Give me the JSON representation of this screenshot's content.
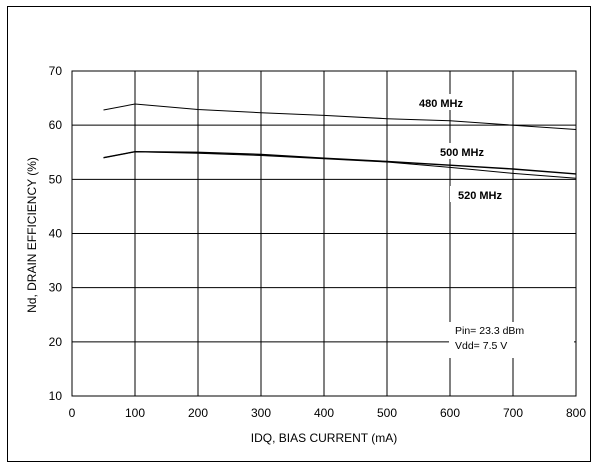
{
  "chart_data": {
    "type": "line",
    "xlabel": "IDQ, BIAS CURRENT (mA)",
    "ylabel": "Nd, DRAIN EFFICIENCY (%)",
    "xlim": [
      0,
      800
    ],
    "ylim": [
      10,
      70
    ],
    "x_ticks": [
      0,
      100,
      200,
      300,
      400,
      500,
      600,
      700,
      800
    ],
    "y_ticks": [
      10,
      20,
      30,
      40,
      50,
      60,
      70
    ],
    "grid": true,
    "series": [
      {
        "name": "480 MHz",
        "x": [
          50,
          100,
          200,
          300,
          400,
          500,
          600,
          700,
          800
        ],
        "y": [
          62.8,
          63.9,
          62.9,
          62.3,
          61.8,
          61.2,
          60.8,
          60.0,
          59.2
        ]
      },
      {
        "name": "500 MHz",
        "x": [
          50,
          100,
          200,
          300,
          400,
          500,
          600,
          700,
          800
        ],
        "y": [
          54.0,
          55.1,
          55.0,
          54.6,
          53.9,
          53.3,
          52.6,
          51.9,
          51.0
        ]
      },
      {
        "name": "520 MHz",
        "x": [
          50,
          100,
          200,
          300,
          400,
          500,
          600,
          700,
          800
        ],
        "y": [
          54.0,
          55.1,
          54.8,
          54.4,
          53.8,
          53.2,
          52.2,
          51.1,
          50.2
        ]
      }
    ],
    "annotations": [
      "Pin= 23.3 dBm",
      "Vdd= 7.5 V"
    ]
  }
}
